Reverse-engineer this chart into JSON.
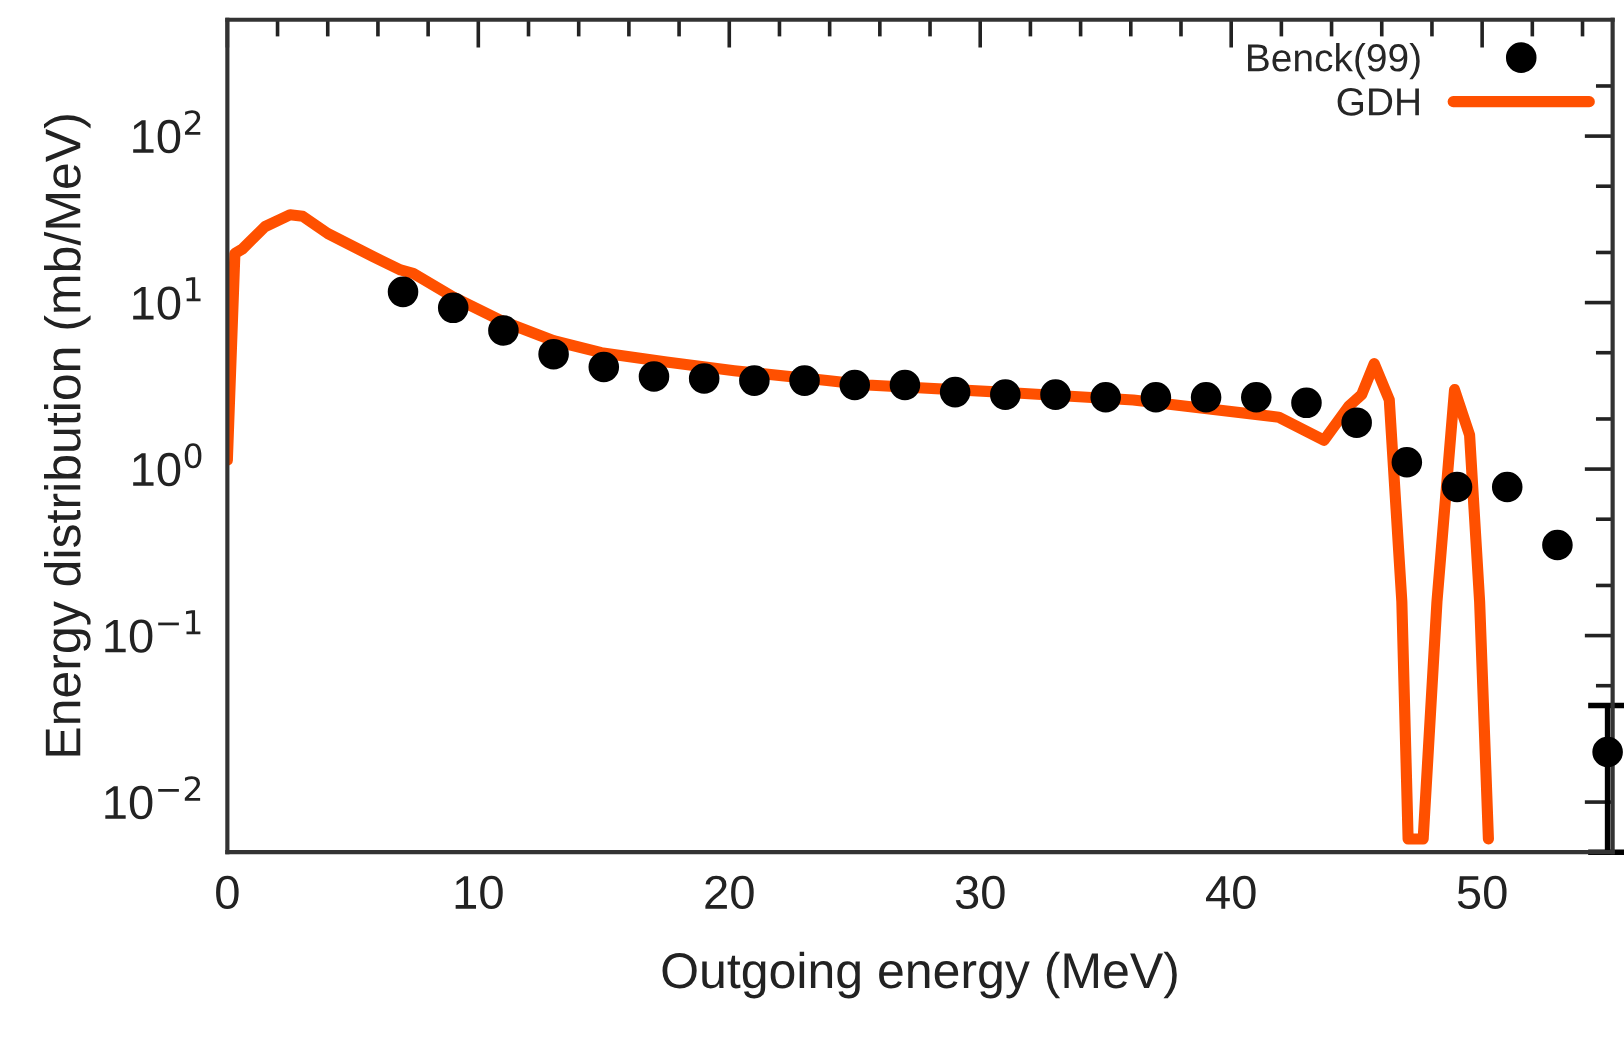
{
  "chart_data": {
    "type": "scatter",
    "xlabel": "Outgoing energy (MeV)",
    "ylabel": "Energy distribution (mb/MeV)",
    "log": "y",
    "legend": "top right",
    "grid": false,
    "xlim": [
      0,
      55.2
    ],
    "ylim": [
      0.005,
      500
    ],
    "xticks": [
      0,
      {
        "value": 2,
        "label": null
      },
      {
        "value": 4,
        "label": null
      },
      {
        "value": 6,
        "label": null
      },
      {
        "value": 8,
        "label": null
      },
      10,
      {
        "value": 12,
        "label": null
      },
      {
        "value": 14,
        "label": null
      },
      {
        "value": 16,
        "label": null
      },
      {
        "value": 18,
        "label": null
      },
      20,
      {
        "value": 22,
        "label": null
      },
      {
        "value": 24,
        "label": null
      },
      {
        "value": 26,
        "label": null
      },
      {
        "value": 28,
        "label": null
      },
      30,
      {
        "value": 32,
        "label": null
      },
      {
        "value": 34,
        "label": null
      },
      {
        "value": 36,
        "label": null
      },
      {
        "value": 38,
        "label": null
      },
      40,
      {
        "value": 42,
        "label": null
      },
      {
        "value": 44,
        "label": null
      },
      {
        "value": 46,
        "label": null
      },
      {
        "value": 48,
        "label": null
      },
      50,
      {
        "value": 52,
        "label": null
      },
      {
        "value": 54,
        "label": null
      }
    ],
    "yticks": [
      {
        "value": 0.01,
        "label": "10$^{−2}$"
      },
      {
        "value": 0.02,
        "label": null
      },
      {
        "value": 0.05,
        "label": null
      },
      {
        "value": 0.1,
        "label": "10$^{−1}$"
      },
      {
        "value": 0.2,
        "label": null
      },
      {
        "value": 0.5,
        "label": null
      },
      {
        "value": 1,
        "label": "10$^{0}$"
      },
      {
        "value": 2,
        "label": null
      },
      {
        "value": 5,
        "label": null
      },
      {
        "value": 10,
        "label": "10$^{1}$"
      },
      {
        "value": 20,
        "label": null
      },
      {
        "value": 50,
        "label": null
      },
      {
        "value": 100,
        "label": "10$^{2}$"
      },
      {
        "value": 200,
        "label": null
      }
    ],
    "series": [
      {
        "name": "Benck(99)",
        "color": "#000000",
        "marker": "circle",
        "x": [
          7,
          9,
          11,
          13,
          15,
          17,
          19,
          21,
          23,
          25,
          27,
          29,
          31,
          33,
          35,
          37,
          39,
          41,
          43,
          45,
          47,
          49,
          51,
          53,
          55
        ],
        "values": [
          11.6,
          9.3,
          6.8,
          4.9,
          4.1,
          3.6,
          3.5,
          3.4,
          3.4,
          3.2,
          3.2,
          2.9,
          2.8,
          2.8,
          2.7,
          2.7,
          2.7,
          2.7,
          2.5,
          1.9,
          1.1,
          0.78,
          0.78,
          0.35,
          0.02
        ],
        "errors": [
          null,
          null,
          null,
          null,
          null,
          null,
          null,
          null,
          null,
          null,
          null,
          null,
          null,
          null,
          null,
          null,
          null,
          null,
          null,
          null,
          null,
          null,
          null,
          null,
          [
            0.005,
            0.038
          ]
        ]
      },
      {
        "name": "GDH",
        "type": "line",
        "color": "#ff5000",
        "line_style": "solid",
        "marker": "none",
        "x": [
          0,
          0.3,
          0.6,
          1.5,
          2.5,
          3,
          4,
          5.8,
          6.9,
          7.4,
          9.0,
          10.9,
          13.0,
          14.9,
          17.5,
          20.2,
          23.9,
          25.5,
          30.8,
          36.1,
          41.9,
          43.7,
          44.7,
          45.2,
          45.7,
          46.3,
          46.8,
          47.05,
          47.65,
          48.2,
          48.9,
          49.5,
          49.9,
          50.25
        ],
        "values": [
          1.13,
          19.7,
          21,
          28.6,
          33.7,
          33,
          26,
          18.9,
          15.7,
          15,
          10.8,
          7.8,
          5.9,
          5.0,
          4.4,
          3.9,
          3.4,
          3.2,
          2.9,
          2.6,
          2.05,
          1.49,
          2.4,
          2.8,
          4.3,
          2.6,
          0.16,
          0.006,
          0.006,
          0.16,
          3.0,
          1.6,
          0.16,
          0.006
        ]
      }
    ]
  }
}
